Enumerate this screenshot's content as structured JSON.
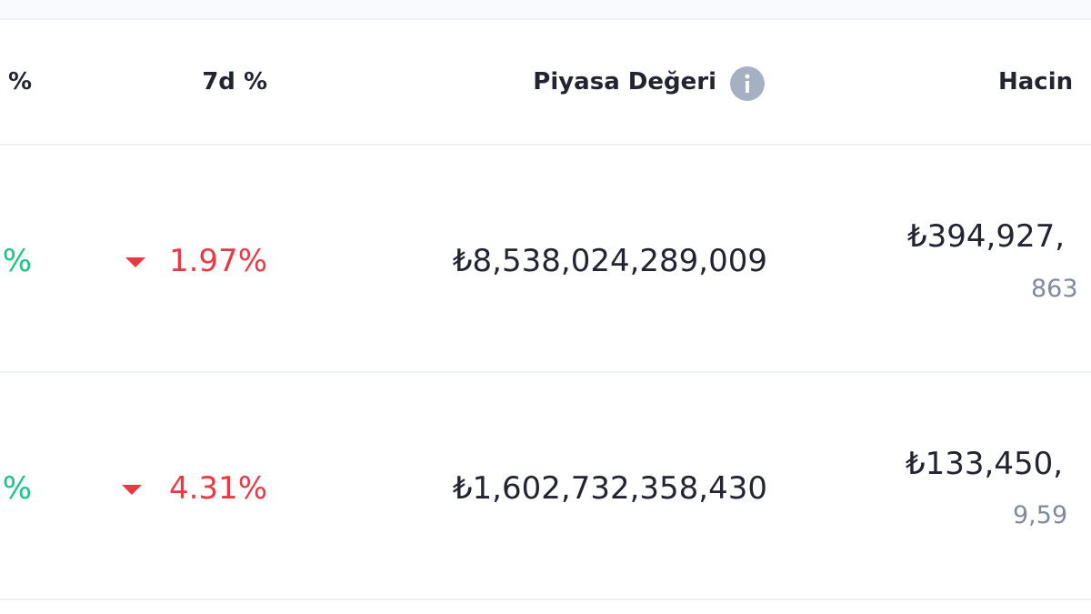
{
  "table": {
    "header": [
      "%",
      "7d %",
      "Piyasa Değeri",
      "Hacin"
    ],
    "rows": [
      {
        "change_24h": "%",
        "change_7d": "1.97%",
        "market_cap": "₺8,538,024,289,009",
        "volume": "₺394,927,",
        "volume_sub": "863"
      },
      {
        "change_24h": "%",
        "change_7d": "4.31%",
        "market_cap": "₺1,602,732,358,430",
        "volume": "₺133,450,",
        "volume_sub": "9,59"
      }
    ]
  }
}
